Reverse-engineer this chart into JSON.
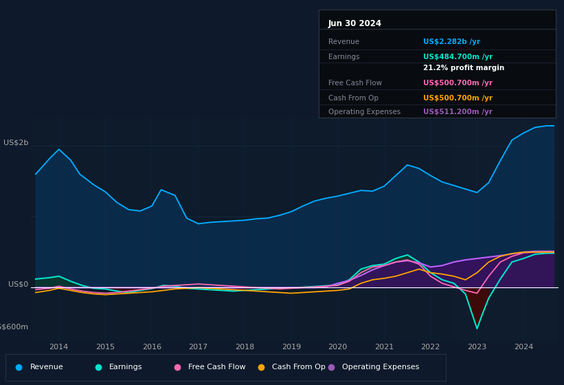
{
  "bg_color": "#0e1a2b",
  "plot_bg_color": "#0d1b2a",
  "grid_color": "#1a2e45",
  "info_box_bg": "#080c10",
  "ylabel_us2b": "US$2b",
  "ylabel_us0": "US$0",
  "ylabel_neg600m": "-US$600m",
  "info_box": {
    "date": "Jun 30 2024",
    "rows": [
      {
        "label": "Revenue",
        "value": "US$2.282b /yr",
        "value_color": "#00aaff"
      },
      {
        "label": "Earnings",
        "value": "US$484.700m /yr",
        "value_color": "#00e5cc"
      },
      {
        "label": "",
        "value": "21.2% profit margin",
        "value_color": "#ffffff"
      },
      {
        "label": "Free Cash Flow",
        "value": "US$500.700m /yr",
        "value_color": "#ff69b4"
      },
      {
        "label": "Cash From Op",
        "value": "US$500.700m /yr",
        "value_color": "#ffa500"
      },
      {
        "label": "Operating Expenses",
        "value": "US$511.200m /yr",
        "value_color": "#9b59b6"
      }
    ]
  },
  "legend": [
    {
      "label": "Revenue",
      "color": "#00aaff"
    },
    {
      "label": "Earnings",
      "color": "#00e5cc"
    },
    {
      "label": "Free Cash Flow",
      "color": "#ff69b4"
    },
    {
      "label": "Cash From Op",
      "color": "#ffa500"
    },
    {
      "label": "Operating Expenses",
      "color": "#9b59b6"
    }
  ],
  "xlim": [
    2013.4,
    2024.75
  ],
  "ylim": [
    -750000000,
    2400000000
  ],
  "xticks": [
    2014,
    2015,
    2016,
    2017,
    2018,
    2019,
    2020,
    2021,
    2022,
    2023,
    2024
  ],
  "revenue_x": [
    2013.5,
    2013.8,
    2014.0,
    2014.25,
    2014.45,
    2014.75,
    2015.0,
    2015.25,
    2015.5,
    2015.75,
    2016.0,
    2016.2,
    2016.5,
    2016.75,
    2017.0,
    2017.25,
    2017.5,
    2017.75,
    2018.0,
    2018.25,
    2018.5,
    2018.75,
    2019.0,
    2019.25,
    2019.5,
    2019.75,
    2020.0,
    2020.25,
    2020.5,
    2020.75,
    2021.0,
    2021.25,
    2021.5,
    2021.75,
    2022.0,
    2022.25,
    2022.5,
    2022.75,
    2023.0,
    2023.25,
    2023.5,
    2023.75,
    2024.0,
    2024.25,
    2024.5,
    2024.65
  ],
  "revenue_y": [
    1600000000.0,
    1820000000.0,
    1950000000.0,
    1800000000.0,
    1600000000.0,
    1450000000.0,
    1350000000.0,
    1200000000.0,
    1100000000.0,
    1080000000.0,
    1150000000.0,
    1380000000.0,
    1300000000.0,
    980000000.0,
    900000000.0,
    920000000.0,
    930000000.0,
    940000000.0,
    950000000.0,
    970000000.0,
    980000000.0,
    1020000000.0,
    1070000000.0,
    1150000000.0,
    1220000000.0,
    1260000000.0,
    1290000000.0,
    1330000000.0,
    1370000000.0,
    1360000000.0,
    1430000000.0,
    1580000000.0,
    1730000000.0,
    1680000000.0,
    1580000000.0,
    1490000000.0,
    1440000000.0,
    1390000000.0,
    1340000000.0,
    1480000000.0,
    1790000000.0,
    2080000000.0,
    2180000000.0,
    2260000000.0,
    2282000000.0,
    2282000000.0
  ],
  "earnings_x": [
    2013.5,
    2013.8,
    2014.0,
    2014.25,
    2014.5,
    2014.75,
    2015.0,
    2015.25,
    2015.5,
    2015.75,
    2016.0,
    2016.25,
    2016.5,
    2016.75,
    2017.0,
    2017.25,
    2017.5,
    2017.75,
    2018.0,
    2018.25,
    2018.5,
    2018.75,
    2019.0,
    2019.25,
    2019.5,
    2019.75,
    2020.0,
    2020.25,
    2020.5,
    2020.75,
    2021.0,
    2021.25,
    2021.5,
    2021.75,
    2022.0,
    2022.25,
    2022.5,
    2022.75,
    2023.0,
    2023.1,
    2023.25,
    2023.5,
    2023.75,
    2024.0,
    2024.25,
    2024.5,
    2024.65
  ],
  "earnings_y": [
    120000000.0,
    140000000.0,
    160000000.0,
    90000000.0,
    30000000.0,
    -10000000.0,
    -20000000.0,
    -50000000.0,
    -70000000.0,
    -40000000.0,
    -15000000.0,
    30000000.0,
    20000000.0,
    -10000000.0,
    -20000000.0,
    -30000000.0,
    -40000000.0,
    -50000000.0,
    -40000000.0,
    -30000000.0,
    -20000000.0,
    -10000000.0,
    -5000000.0,
    5000000.0,
    15000000.0,
    25000000.0,
    35000000.0,
    110000000.0,
    260000000.0,
    310000000.0,
    330000000.0,
    410000000.0,
    460000000.0,
    360000000.0,
    210000000.0,
    110000000.0,
    60000000.0,
    -90000000.0,
    -580000000.0,
    -400000000.0,
    -150000000.0,
    120000000.0,
    360000000.0,
    410000000.0,
    470000000.0,
    484700000.0,
    484700000.0
  ],
  "fcf_x": [
    2013.5,
    2013.8,
    2014.0,
    2014.25,
    2014.5,
    2014.75,
    2015.0,
    2015.25,
    2015.5,
    2015.75,
    2016.0,
    2016.25,
    2016.5,
    2016.75,
    2017.0,
    2017.25,
    2017.5,
    2017.75,
    2018.0,
    2018.25,
    2018.5,
    2018.75,
    2019.0,
    2019.25,
    2019.5,
    2019.75,
    2020.0,
    2020.25,
    2020.5,
    2020.75,
    2021.0,
    2021.25,
    2021.5,
    2021.75,
    2022.0,
    2022.25,
    2022.5,
    2022.75,
    2023.0,
    2023.25,
    2023.5,
    2023.75,
    2024.0,
    2024.25,
    2024.5,
    2024.65
  ],
  "fcf_y": [
    -30000000.0,
    -10000000.0,
    20000000.0,
    -20000000.0,
    -50000000.0,
    -70000000.0,
    -80000000.0,
    -70000000.0,
    -50000000.0,
    -30000000.0,
    -10000000.0,
    20000000.0,
    30000000.0,
    40000000.0,
    50000000.0,
    40000000.0,
    30000000.0,
    20000000.0,
    10000000.0,
    0,
    -10000000.0,
    -20000000.0,
    -10000000.0,
    0,
    10000000.0,
    20000000.0,
    30000000.0,
    90000000.0,
    210000000.0,
    290000000.0,
    310000000.0,
    360000000.0,
    390000000.0,
    330000000.0,
    160000000.0,
    60000000.0,
    10000000.0,
    -40000000.0,
    -80000000.0,
    160000000.0,
    360000000.0,
    440000000.0,
    490000000.0,
    500000000.0,
    500700000.0,
    500700000.0
  ],
  "cfo_x": [
    2013.5,
    2013.8,
    2014.0,
    2014.25,
    2014.5,
    2014.75,
    2015.0,
    2015.25,
    2015.5,
    2015.75,
    2016.0,
    2016.25,
    2016.5,
    2016.75,
    2017.0,
    2017.25,
    2017.5,
    2017.75,
    2018.0,
    2018.25,
    2018.5,
    2018.75,
    2019.0,
    2019.25,
    2019.5,
    2019.75,
    2020.0,
    2020.25,
    2020.5,
    2020.75,
    2021.0,
    2021.25,
    2021.5,
    2021.75,
    2022.0,
    2022.25,
    2022.5,
    2022.75,
    2023.0,
    2023.25,
    2023.5,
    2023.75,
    2024.0,
    2024.25,
    2024.5,
    2024.65
  ],
  "cfo_y": [
    -70000000.0,
    -40000000.0,
    -10000000.0,
    -40000000.0,
    -70000000.0,
    -90000000.0,
    -100000000.0,
    -90000000.0,
    -80000000.0,
    -70000000.0,
    -60000000.0,
    -40000000.0,
    -20000000.0,
    -10000000.0,
    0.0,
    -10000000.0,
    -20000000.0,
    -30000000.0,
    -40000000.0,
    -50000000.0,
    -60000000.0,
    -70000000.0,
    -80000000.0,
    -70000000.0,
    -60000000.0,
    -50000000.0,
    -40000000.0,
    -20000000.0,
    60000000.0,
    110000000.0,
    130000000.0,
    160000000.0,
    210000000.0,
    260000000.0,
    210000000.0,
    190000000.0,
    160000000.0,
    110000000.0,
    210000000.0,
    360000000.0,
    440000000.0,
    480000000.0,
    500000000.0,
    500000000.0,
    500700000.0,
    500700000.0
  ],
  "opex_x": [
    2013.5,
    2014.0,
    2014.5,
    2015.0,
    2015.5,
    2016.0,
    2016.5,
    2017.0,
    2017.5,
    2018.0,
    2018.5,
    2019.0,
    2019.5,
    2019.75,
    2020.0,
    2020.25,
    2020.5,
    2020.75,
    2021.0,
    2021.25,
    2021.5,
    2021.75,
    2022.0,
    2022.25,
    2022.5,
    2022.75,
    2023.0,
    2023.25,
    2023.5,
    2023.75,
    2024.0,
    2024.25,
    2024.5,
    2024.65
  ],
  "opex_y": [
    0,
    0,
    0,
    0,
    0,
    0,
    0,
    0,
    0,
    0,
    0,
    0,
    0,
    10000000.0,
    60000000.0,
    100000000.0,
    170000000.0,
    250000000.0,
    310000000.0,
    360000000.0,
    380000000.0,
    350000000.0,
    290000000.0,
    310000000.0,
    360000000.0,
    390000000.0,
    410000000.0,
    430000000.0,
    450000000.0,
    475000000.0,
    500000000.0,
    511200000.0,
    511200000.0,
    511200000.0
  ],
  "revenue_line_color": "#00aaff",
  "revenue_fill_color": "#0a2a4a",
  "earnings_line_color": "#00e5cc",
  "earnings_pos_fill": "#0a3530",
  "earnings_neg_fill": "#3d0a0a",
  "opex_line_color": "#c060ff",
  "opex_fill_color": "#3a1060",
  "fcf_line_color": "#ff69b4",
  "cfo_line_color": "#ffa500",
  "zero_line_color": "#ffffff",
  "text_color": "#aaaaaa",
  "highlight_bg": "#101e30"
}
